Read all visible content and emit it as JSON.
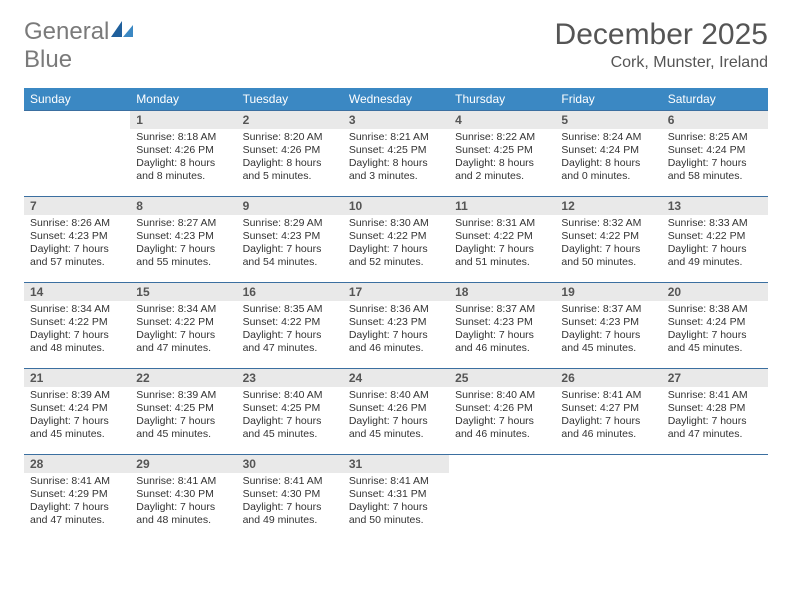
{
  "logo": {
    "text1": "General",
    "text2": "Blue"
  },
  "header": {
    "month": "December 2025",
    "location": "Cork, Munster, Ireland"
  },
  "colors": {
    "header_bg": "#3b88c3",
    "header_text": "#ffffff",
    "row_border": "#3b6fa0",
    "daynum_bg": "#e9e9e9",
    "body_text": "#333333",
    "title_text": "#555555"
  },
  "weekdays": [
    "Sunday",
    "Monday",
    "Tuesday",
    "Wednesday",
    "Thursday",
    "Friday",
    "Saturday"
  ],
  "weeks": [
    [
      {
        "empty": true
      },
      {
        "n": "1",
        "l1": "Sunrise: 8:18 AM",
        "l2": "Sunset: 4:26 PM",
        "l3": "Daylight: 8 hours",
        "l4": "and 8 minutes."
      },
      {
        "n": "2",
        "l1": "Sunrise: 8:20 AM",
        "l2": "Sunset: 4:26 PM",
        "l3": "Daylight: 8 hours",
        "l4": "and 5 minutes."
      },
      {
        "n": "3",
        "l1": "Sunrise: 8:21 AM",
        "l2": "Sunset: 4:25 PM",
        "l3": "Daylight: 8 hours",
        "l4": "and 3 minutes."
      },
      {
        "n": "4",
        "l1": "Sunrise: 8:22 AM",
        "l2": "Sunset: 4:25 PM",
        "l3": "Daylight: 8 hours",
        "l4": "and 2 minutes."
      },
      {
        "n": "5",
        "l1": "Sunrise: 8:24 AM",
        "l2": "Sunset: 4:24 PM",
        "l3": "Daylight: 8 hours",
        "l4": "and 0 minutes."
      },
      {
        "n": "6",
        "l1": "Sunrise: 8:25 AM",
        "l2": "Sunset: 4:24 PM",
        "l3": "Daylight: 7 hours",
        "l4": "and 58 minutes."
      }
    ],
    [
      {
        "n": "7",
        "l1": "Sunrise: 8:26 AM",
        "l2": "Sunset: 4:23 PM",
        "l3": "Daylight: 7 hours",
        "l4": "and 57 minutes."
      },
      {
        "n": "8",
        "l1": "Sunrise: 8:27 AM",
        "l2": "Sunset: 4:23 PM",
        "l3": "Daylight: 7 hours",
        "l4": "and 55 minutes."
      },
      {
        "n": "9",
        "l1": "Sunrise: 8:29 AM",
        "l2": "Sunset: 4:23 PM",
        "l3": "Daylight: 7 hours",
        "l4": "and 54 minutes."
      },
      {
        "n": "10",
        "l1": "Sunrise: 8:30 AM",
        "l2": "Sunset: 4:22 PM",
        "l3": "Daylight: 7 hours",
        "l4": "and 52 minutes."
      },
      {
        "n": "11",
        "l1": "Sunrise: 8:31 AM",
        "l2": "Sunset: 4:22 PM",
        "l3": "Daylight: 7 hours",
        "l4": "and 51 minutes."
      },
      {
        "n": "12",
        "l1": "Sunrise: 8:32 AM",
        "l2": "Sunset: 4:22 PM",
        "l3": "Daylight: 7 hours",
        "l4": "and 50 minutes."
      },
      {
        "n": "13",
        "l1": "Sunrise: 8:33 AM",
        "l2": "Sunset: 4:22 PM",
        "l3": "Daylight: 7 hours",
        "l4": "and 49 minutes."
      }
    ],
    [
      {
        "n": "14",
        "l1": "Sunrise: 8:34 AM",
        "l2": "Sunset: 4:22 PM",
        "l3": "Daylight: 7 hours",
        "l4": "and 48 minutes."
      },
      {
        "n": "15",
        "l1": "Sunrise: 8:34 AM",
        "l2": "Sunset: 4:22 PM",
        "l3": "Daylight: 7 hours",
        "l4": "and 47 minutes."
      },
      {
        "n": "16",
        "l1": "Sunrise: 8:35 AM",
        "l2": "Sunset: 4:22 PM",
        "l3": "Daylight: 7 hours",
        "l4": "and 47 minutes."
      },
      {
        "n": "17",
        "l1": "Sunrise: 8:36 AM",
        "l2": "Sunset: 4:23 PM",
        "l3": "Daylight: 7 hours",
        "l4": "and 46 minutes."
      },
      {
        "n": "18",
        "l1": "Sunrise: 8:37 AM",
        "l2": "Sunset: 4:23 PM",
        "l3": "Daylight: 7 hours",
        "l4": "and 46 minutes."
      },
      {
        "n": "19",
        "l1": "Sunrise: 8:37 AM",
        "l2": "Sunset: 4:23 PM",
        "l3": "Daylight: 7 hours",
        "l4": "and 45 minutes."
      },
      {
        "n": "20",
        "l1": "Sunrise: 8:38 AM",
        "l2": "Sunset: 4:24 PM",
        "l3": "Daylight: 7 hours",
        "l4": "and 45 minutes."
      }
    ],
    [
      {
        "n": "21",
        "l1": "Sunrise: 8:39 AM",
        "l2": "Sunset: 4:24 PM",
        "l3": "Daylight: 7 hours",
        "l4": "and 45 minutes."
      },
      {
        "n": "22",
        "l1": "Sunrise: 8:39 AM",
        "l2": "Sunset: 4:25 PM",
        "l3": "Daylight: 7 hours",
        "l4": "and 45 minutes."
      },
      {
        "n": "23",
        "l1": "Sunrise: 8:40 AM",
        "l2": "Sunset: 4:25 PM",
        "l3": "Daylight: 7 hours",
        "l4": "and 45 minutes."
      },
      {
        "n": "24",
        "l1": "Sunrise: 8:40 AM",
        "l2": "Sunset: 4:26 PM",
        "l3": "Daylight: 7 hours",
        "l4": "and 45 minutes."
      },
      {
        "n": "25",
        "l1": "Sunrise: 8:40 AM",
        "l2": "Sunset: 4:26 PM",
        "l3": "Daylight: 7 hours",
        "l4": "and 46 minutes."
      },
      {
        "n": "26",
        "l1": "Sunrise: 8:41 AM",
        "l2": "Sunset: 4:27 PM",
        "l3": "Daylight: 7 hours",
        "l4": "and 46 minutes."
      },
      {
        "n": "27",
        "l1": "Sunrise: 8:41 AM",
        "l2": "Sunset: 4:28 PM",
        "l3": "Daylight: 7 hours",
        "l4": "and 47 minutes."
      }
    ],
    [
      {
        "n": "28",
        "l1": "Sunrise: 8:41 AM",
        "l2": "Sunset: 4:29 PM",
        "l3": "Daylight: 7 hours",
        "l4": "and 47 minutes."
      },
      {
        "n": "29",
        "l1": "Sunrise: 8:41 AM",
        "l2": "Sunset: 4:30 PM",
        "l3": "Daylight: 7 hours",
        "l4": "and 48 minutes."
      },
      {
        "n": "30",
        "l1": "Sunrise: 8:41 AM",
        "l2": "Sunset: 4:30 PM",
        "l3": "Daylight: 7 hours",
        "l4": "and 49 minutes."
      },
      {
        "n": "31",
        "l1": "Sunrise: 8:41 AM",
        "l2": "Sunset: 4:31 PM",
        "l3": "Daylight: 7 hours",
        "l4": "and 50 minutes."
      },
      {
        "empty": true
      },
      {
        "empty": true
      },
      {
        "empty": true
      }
    ]
  ]
}
